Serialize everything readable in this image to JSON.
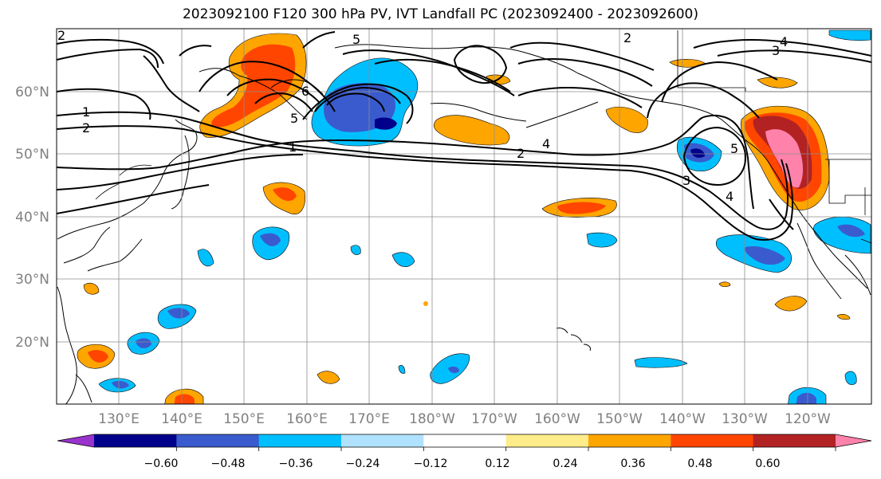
{
  "title": "2023092100 F120 300 hPa PV, IVT Landfall PC (2023092400 - 2023092600)",
  "lat_labels": [
    "60°N",
    "50°N",
    "40°N",
    "30°N",
    "20°N"
  ],
  "lon_labels": [
    "130°E",
    "140°E",
    "150°E",
    "160°E",
    "170°E",
    "180°W",
    "170°W",
    "160°W",
    "150°W",
    "140°W",
    "130°W",
    "120°W"
  ],
  "colorbar": {
    "ticks": [
      "−0.60",
      "−0.48",
      "−0.36",
      "−0.24",
      "−0.12",
      "0.12",
      "0.24",
      "0.36",
      "0.48",
      "0.60"
    ],
    "colors": [
      "#9a32cd",
      "#00008b",
      "#3a5bcd",
      "#00bfff",
      "#b0e2ff",
      "#ffffff",
      "#ffec8b",
      "#ffa500",
      "#ff4500",
      "#b22222",
      "#ff82ab"
    ]
  },
  "contour_labels": [
    "2",
    "5",
    "2",
    "4",
    "3",
    "1",
    "2",
    "6",
    "5",
    "1",
    "4",
    "2",
    "3",
    "5",
    "4"
  ]
}
